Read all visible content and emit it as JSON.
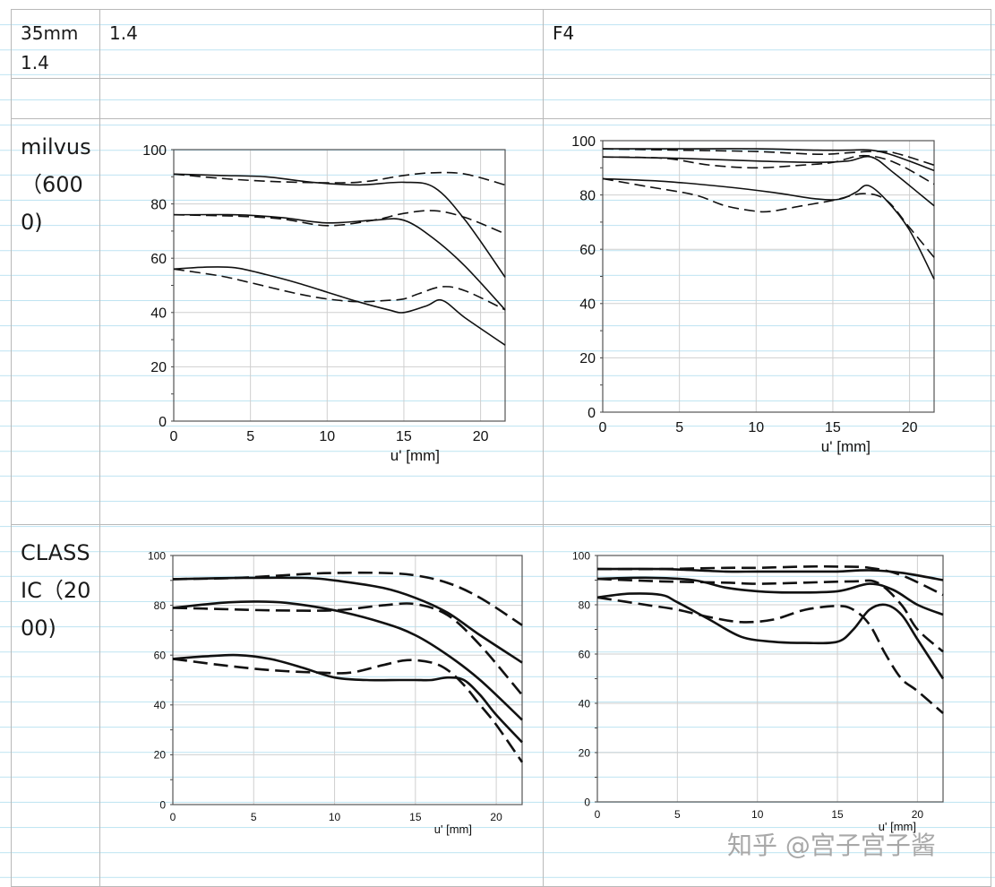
{
  "table": {
    "header": {
      "lens": "35mm 1.4",
      "col1": "1.4",
      "col2": "F4"
    },
    "rows": [
      {
        "label": "milvus（6000)"
      },
      {
        "label": "CLASSIC（2000)"
      }
    ]
  },
  "watermark": "知乎 @宫子宫子酱",
  "chart_data": [
    {
      "type": "line",
      "title": "milvus 1.4",
      "xlabel": "u' [mm]",
      "ylabel": "",
      "xlim": [
        0,
        21.6
      ],
      "ylim": [
        0,
        100
      ],
      "xticks": [
        0,
        5,
        10,
        15,
        20
      ],
      "yticks": [
        0,
        20,
        40,
        60,
        80,
        100
      ],
      "grid": true,
      "series": [
        {
          "name": "solid-high",
          "style": "solid",
          "x": [
            0,
            3,
            6,
            9,
            12,
            15,
            17,
            19,
            21.6
          ],
          "y": [
            91,
            90.5,
            90,
            88,
            87,
            88,
            86,
            74,
            53
          ]
        },
        {
          "name": "dashed-high",
          "style": "dashed",
          "x": [
            0,
            4,
            8,
            12,
            15,
            17,
            19,
            21.6
          ],
          "y": [
            91,
            89,
            88,
            88,
            90.5,
            91.5,
            91,
            87
          ]
        },
        {
          "name": "solid-mid",
          "style": "solid",
          "x": [
            0,
            4,
            7,
            10,
            13,
            15,
            17,
            19,
            21.6
          ],
          "y": [
            76,
            76,
            75,
            73,
            74,
            74,
            67,
            57,
            41
          ]
        },
        {
          "name": "dashed-mid",
          "style": "dashed",
          "x": [
            0,
            4,
            7,
            10,
            13,
            15,
            17,
            19,
            21.6
          ],
          "y": [
            76,
            75.5,
            74.5,
            72,
            74,
            76.5,
            77.5,
            75,
            69
          ]
        },
        {
          "name": "solid-low",
          "style": "solid",
          "x": [
            0,
            2,
            4,
            6,
            8,
            10,
            12,
            14,
            15,
            16.5,
            17.5,
            19,
            21.6
          ],
          "y": [
            56,
            56.7,
            56.5,
            54,
            51,
            47.5,
            44,
            41,
            40,
            42.5,
            44.5,
            38,
            28
          ]
        },
        {
          "name": "dashed-low",
          "style": "dashed",
          "x": [
            0,
            3,
            5,
            8,
            10,
            12,
            14,
            15,
            16,
            17.5,
            19,
            21.6
          ],
          "y": [
            56,
            53.5,
            51,
            47,
            45,
            44,
            44.5,
            45,
            47,
            49.5,
            48,
            41
          ]
        }
      ]
    },
    {
      "type": "line",
      "title": "milvus F4",
      "xlabel": "u' [mm]",
      "ylabel": "",
      "xlim": [
        0,
        21.6
      ],
      "ylim": [
        0,
        100
      ],
      "xticks": [
        0,
        5,
        10,
        15,
        20
      ],
      "yticks": [
        0,
        20,
        40,
        60,
        80,
        100
      ],
      "grid": true,
      "series": [
        {
          "name": "solid-high",
          "style": "solid",
          "x": [
            0,
            5,
            10,
            14,
            16,
            17.5,
            19,
            21.6
          ],
          "y": [
            97,
            97,
            97,
            96.5,
            96.5,
            96.5,
            94.5,
            89
          ]
        },
        {
          "name": "dashed-high",
          "style": "dashed",
          "x": [
            0,
            5,
            10,
            14,
            16,
            17.5,
            19,
            21.6
          ],
          "y": [
            97,
            96.5,
            96,
            95,
            95.5,
            96,
            95.5,
            91
          ]
        },
        {
          "name": "solid-mid",
          "style": "solid",
          "x": [
            0,
            5,
            10,
            14,
            16,
            17.5,
            19,
            21.6
          ],
          "y": [
            94,
            93.5,
            92.5,
            92,
            92.5,
            94,
            88,
            76
          ]
        },
        {
          "name": "dashed-mid",
          "style": "dashed",
          "x": [
            0,
            4,
            7,
            10,
            13,
            15,
            17,
            19,
            21.6
          ],
          "y": [
            94,
            93.5,
            91,
            90,
            91,
            92,
            94.5,
            92,
            84
          ]
        },
        {
          "name": "solid-low",
          "style": "solid",
          "x": [
            0,
            4,
            8,
            11,
            14,
            15.5,
            16.5,
            17.3,
            18.5,
            20,
            21.6
          ],
          "y": [
            86,
            85,
            83,
            81,
            78.5,
            78.5,
            81,
            83.5,
            78,
            67,
            49
          ]
        },
        {
          "name": "dashed-low",
          "style": "dashed",
          "x": [
            0,
            3,
            6,
            8,
            10,
            11,
            13,
            15,
            17,
            18.5,
            20,
            21.6
          ],
          "y": [
            86,
            83,
            80,
            76,
            74,
            74,
            76,
            78,
            80.5,
            78,
            68,
            57
          ]
        }
      ]
    },
    {
      "type": "line",
      "title": "CLASSIC 1.4",
      "xlabel": "u' [mm]",
      "ylabel": "",
      "xlim": [
        0,
        21.6
      ],
      "ylim": [
        0,
        100
      ],
      "xticks": [
        0,
        5,
        10,
        15,
        20
      ],
      "yticks": [
        0,
        20,
        40,
        60,
        80,
        100
      ],
      "grid": true,
      "series": [
        {
          "name": "solid-high",
          "style": "solid",
          "x": [
            0,
            4,
            8,
            10,
            13,
            15,
            17,
            19,
            21.6
          ],
          "y": [
            90.5,
            91,
            91,
            90,
            87,
            83,
            77,
            68,
            57
          ]
        },
        {
          "name": "dashed-high",
          "style": "dashed",
          "x": [
            0,
            4,
            8,
            10,
            13,
            15,
            17,
            19,
            21.6
          ],
          "y": [
            90.5,
            91,
            92.5,
            93,
            93,
            92,
            89,
            83,
            72
          ]
        },
        {
          "name": "solid-mid",
          "style": "solid",
          "x": [
            0,
            3,
            5,
            7,
            10,
            13,
            15,
            17,
            19,
            21.6
          ],
          "y": [
            79,
            81,
            81.5,
            81,
            78,
            73,
            68,
            60,
            50,
            34
          ]
        },
        {
          "name": "dashed-mid",
          "style": "dashed",
          "x": [
            0,
            3,
            6,
            10,
            13,
            15,
            17,
            19,
            21.6
          ],
          "y": [
            79,
            78.5,
            78,
            78,
            80,
            80.5,
            76,
            64,
            44
          ]
        },
        {
          "name": "solid-low",
          "style": "solid",
          "x": [
            0,
            2,
            4,
            6,
            8,
            10,
            12,
            14,
            15,
            16,
            17,
            18,
            19,
            20,
            21.6
          ],
          "y": [
            58.5,
            59.5,
            60,
            58.5,
            55,
            51,
            50,
            50,
            50,
            50,
            51,
            50,
            44,
            36,
            25
          ]
        },
        {
          "name": "dashed-low",
          "style": "dashed",
          "x": [
            0,
            3,
            6,
            9,
            11,
            13,
            14.5,
            16,
            17,
            18,
            19,
            20,
            21.6
          ],
          "y": [
            58.5,
            56,
            54,
            53,
            53,
            56,
            58,
            57,
            54,
            48,
            40,
            32,
            17
          ]
        }
      ]
    },
    {
      "type": "line",
      "title": "CLASSIC F4",
      "xlabel": "u' [mm]",
      "ylabel": "",
      "xlim": [
        0,
        21.6
      ],
      "ylim": [
        0,
        100
      ],
      "xticks": [
        0,
        5,
        10,
        15,
        20
      ],
      "yticks": [
        0,
        20,
        40,
        60,
        80,
        100
      ],
      "grid": true,
      "series": [
        {
          "name": "solid-high",
          "style": "solid",
          "x": [
            0,
            4,
            8,
            10,
            13,
            15,
            17,
            19,
            21.6
          ],
          "y": [
            94.5,
            94.5,
            93.5,
            93.5,
            93.5,
            93.5,
            94,
            93,
            90
          ]
        },
        {
          "name": "dashed-high",
          "style": "dashed",
          "x": [
            0,
            4,
            8,
            10,
            13,
            15,
            17,
            19,
            21.6
          ],
          "y": [
            94.5,
            94.5,
            95,
            95,
            95.5,
            95.5,
            95,
            92,
            84
          ]
        },
        {
          "name": "solid-mid",
          "style": "solid",
          "x": [
            0,
            3,
            6,
            8,
            10,
            12,
            15,
            17,
            18.5,
            20,
            21.6
          ],
          "y": [
            90.5,
            91,
            90,
            87,
            85.5,
            85,
            85.5,
            88.5,
            86,
            80,
            76
          ]
        },
        {
          "name": "dashed-mid",
          "style": "dashed",
          "x": [
            0,
            4,
            8,
            10,
            13,
            16,
            17.5,
            19,
            20,
            21.6
          ],
          "y": [
            90.5,
            89.5,
            89,
            88.5,
            89,
            89.5,
            89,
            80,
            70,
            61
          ]
        },
        {
          "name": "solid-low",
          "style": "solid",
          "x": [
            0,
            2,
            4,
            5,
            7,
            9,
            11,
            13,
            15,
            16,
            17,
            18,
            19,
            20,
            21.6
          ],
          "y": [
            83,
            84.5,
            84,
            81,
            74,
            67,
            65,
            64.5,
            65,
            70,
            78,
            80,
            76,
            66,
            50
          ]
        },
        {
          "name": "dashed-low",
          "style": "dashed",
          "x": [
            0,
            3,
            5,
            7,
            9,
            11,
            13,
            15,
            16,
            17,
            18,
            19,
            20,
            21.6
          ],
          "y": [
            83,
            80,
            78,
            75,
            73,
            74,
            78,
            79.5,
            78,
            72,
            60,
            50,
            45,
            36
          ]
        }
      ]
    }
  ]
}
